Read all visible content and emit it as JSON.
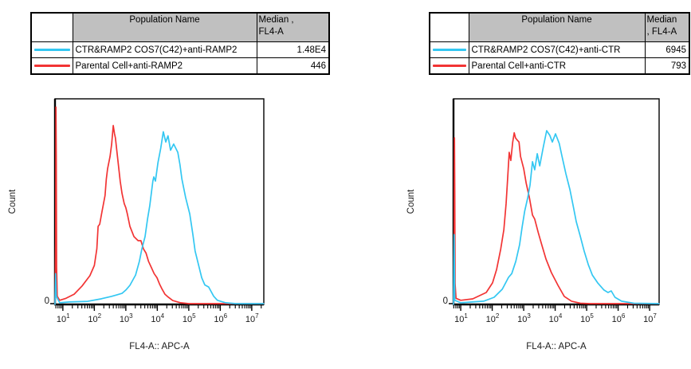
{
  "colors": {
    "series_cyan": "#33c7f2",
    "series_red": "#f23434",
    "table_header_bg": "#c0c0c0",
    "axis": "#000000"
  },
  "panels": [
    {
      "table": {
        "population_header": "Population Name",
        "median_header_line1": "Median ,",
        "median_header_line2": "FL4-A",
        "rows": [
          {
            "label": "CTR&RAMP2 COS7(C42)+anti-RAMP2",
            "value": "1.48E4"
          },
          {
            "label": "Parental Cell+anti-RAMP2",
            "value": "446"
          }
        ]
      }
    },
    {
      "table": {
        "population_header": "Population Name",
        "median_header_line1": "Median",
        "median_header_line2": ", FL4-A",
        "rows": [
          {
            "label": "CTR&RAMP2 COS7(C42)+anti-CTR",
            "value": "6945"
          },
          {
            "label": "Parental Cell+anti-CTR",
            "value": "793"
          }
        ]
      }
    }
  ],
  "chart_data": [
    {
      "type": "line",
      "subtype": "flow-cytometry-histogram",
      "title": "",
      "xlabel": "FL4-A:: APC-A",
      "ylabel": "Count",
      "x_scale": "log10",
      "x_ticks_exponents": [
        1,
        2,
        3,
        4,
        5,
        6,
        7
      ],
      "x_range_exponents": [
        0.75,
        7.38
      ],
      "y_origin_label": "0",
      "y_unit": "relative count (axis unlabeled except 0)",
      "series": [
        {
          "name": "CTR&RAMP2 COS7(C42)+anti-RAMP2",
          "color": "#33c7f2",
          "median_fl4a": "1.48E4",
          "points": [
            [
              0.75,
              0.0
            ],
            [
              0.77,
              0.15
            ],
            [
              0.79,
              0.04
            ],
            [
              0.9,
              0.008
            ],
            [
              1.2,
              0.012
            ],
            [
              1.79,
              0.015
            ],
            [
              2.21,
              0.027
            ],
            [
              2.54,
              0.039
            ],
            [
              2.72,
              0.047
            ],
            [
              2.88,
              0.054
            ],
            [
              3.0,
              0.07
            ],
            [
              3.13,
              0.093
            ],
            [
              3.31,
              0.143
            ],
            [
              3.43,
              0.21
            ],
            [
              3.51,
              0.27
            ],
            [
              3.61,
              0.33
            ],
            [
              3.69,
              0.415
            ],
            [
              3.76,
              0.48
            ],
            [
              3.86,
              0.6
            ],
            [
              3.89,
              0.62
            ],
            [
              3.94,
              0.6
            ],
            [
              4.02,
              0.69
            ],
            [
              4.11,
              0.76
            ],
            [
              4.19,
              0.84
            ],
            [
              4.27,
              0.79
            ],
            [
              4.34,
              0.82
            ],
            [
              4.42,
              0.75
            ],
            [
              4.52,
              0.78
            ],
            [
              4.65,
              0.74
            ],
            [
              4.72,
              0.68
            ],
            [
              4.78,
              0.61
            ],
            [
              4.9,
              0.52
            ],
            [
              5.03,
              0.44
            ],
            [
              5.13,
              0.34
            ],
            [
              5.2,
              0.26
            ],
            [
              5.33,
              0.18
            ],
            [
              5.41,
              0.13
            ],
            [
              5.51,
              0.095
            ],
            [
              5.63,
              0.085
            ],
            [
              5.79,
              0.04
            ],
            [
              5.91,
              0.02
            ],
            [
              6.17,
              0.008
            ],
            [
              6.5,
              0.004
            ],
            [
              7.38,
              0.004
            ]
          ]
        },
        {
          "name": "Parental Cell+anti-RAMP2",
          "color": "#f23434",
          "median_fl4a": "446",
          "points": [
            [
              0.75,
              0.0
            ],
            [
              0.77,
              0.3
            ],
            [
              0.78,
              0.96
            ],
            [
              0.79,
              0.72
            ],
            [
              0.8,
              0.18
            ],
            [
              0.82,
              0.04
            ],
            [
              0.9,
              0.02
            ],
            [
              1.1,
              0.03
            ],
            [
              1.36,
              0.05
            ],
            [
              1.61,
              0.09
            ],
            [
              1.86,
              0.14
            ],
            [
              2.0,
              0.19
            ],
            [
              2.08,
              0.27
            ],
            [
              2.12,
              0.38
            ],
            [
              2.17,
              0.39
            ],
            [
              2.24,
              0.45
            ],
            [
              2.34,
              0.53
            ],
            [
              2.38,
              0.61
            ],
            [
              2.42,
              0.66
            ],
            [
              2.5,
              0.72
            ],
            [
              2.55,
              0.78
            ],
            [
              2.6,
              0.87
            ],
            [
              2.64,
              0.83
            ],
            [
              2.67,
              0.81
            ],
            [
              2.72,
              0.74
            ],
            [
              2.77,
              0.67
            ],
            [
              2.82,
              0.6
            ],
            [
              2.88,
              0.54
            ],
            [
              2.95,
              0.49
            ],
            [
              3.0,
              0.47
            ],
            [
              3.05,
              0.44
            ],
            [
              3.13,
              0.38
            ],
            [
              3.26,
              0.33
            ],
            [
              3.39,
              0.31
            ],
            [
              3.48,
              0.31
            ],
            [
              3.56,
              0.27
            ],
            [
              3.64,
              0.25
            ],
            [
              3.72,
              0.21
            ],
            [
              3.81,
              0.18
            ],
            [
              3.9,
              0.15
            ],
            [
              3.99,
              0.13
            ],
            [
              4.07,
              0.1
            ],
            [
              4.14,
              0.078
            ],
            [
              4.24,
              0.05
            ],
            [
              4.32,
              0.039
            ],
            [
              4.49,
              0.019
            ],
            [
              4.74,
              0.008
            ],
            [
              5.0,
              0.004
            ],
            [
              7.38,
              0.004
            ]
          ]
        }
      ]
    },
    {
      "type": "line",
      "subtype": "flow-cytometry-histogram",
      "title": "",
      "xlabel": "FL4-A:: APC-A",
      "ylabel": "Count",
      "x_scale": "log10",
      "x_ticks_exponents": [
        1,
        2,
        3,
        4,
        5,
        6,
        7
      ],
      "x_range_exponents": [
        0.77,
        7.3
      ],
      "y_origin_label": "0",
      "y_unit": "relative count (axis unlabeled except 0)",
      "series": [
        {
          "name": "CTR&RAMP2 COS7(C42)+anti-CTR",
          "color": "#33c7f2",
          "median_fl4a": "6945",
          "points": [
            [
              0.77,
              0.0
            ],
            [
              0.79,
              0.34
            ],
            [
              0.81,
              0.02
            ],
            [
              1.0,
              0.008
            ],
            [
              1.73,
              0.016
            ],
            [
              2.06,
              0.035
            ],
            [
              2.32,
              0.074
            ],
            [
              2.52,
              0.132
            ],
            [
              2.62,
              0.15
            ],
            [
              2.75,
              0.21
            ],
            [
              2.87,
              0.29
            ],
            [
              2.95,
              0.376
            ],
            [
              3.03,
              0.453
            ],
            [
              3.13,
              0.52
            ],
            [
              3.2,
              0.58
            ],
            [
              3.28,
              0.694
            ],
            [
              3.35,
              0.655
            ],
            [
              3.43,
              0.733
            ],
            [
              3.51,
              0.674
            ],
            [
              3.62,
              0.764
            ],
            [
              3.73,
              0.845
            ],
            [
              3.83,
              0.822
            ],
            [
              3.91,
              0.79
            ],
            [
              4.01,
              0.83
            ],
            [
              4.13,
              0.783
            ],
            [
              4.21,
              0.725
            ],
            [
              4.34,
              0.636
            ],
            [
              4.47,
              0.558
            ],
            [
              4.57,
              0.481
            ],
            [
              4.67,
              0.403
            ],
            [
              4.8,
              0.33
            ],
            [
              4.92,
              0.26
            ],
            [
              5.05,
              0.194
            ],
            [
              5.18,
              0.143
            ],
            [
              5.35,
              0.105
            ],
            [
              5.55,
              0.07
            ],
            [
              5.68,
              0.058
            ],
            [
              5.78,
              0.066
            ],
            [
              5.9,
              0.035
            ],
            [
              6.11,
              0.016
            ],
            [
              6.5,
              0.006
            ],
            [
              7.3,
              0.004
            ]
          ]
        },
        {
          "name": "Parental Cell+anti-CTR",
          "color": "#f23434",
          "median_fl4a": "793",
          "points": [
            [
              0.77,
              0.0
            ],
            [
              0.79,
              0.25
            ],
            [
              0.8,
              0.81
            ],
            [
              0.81,
              0.55
            ],
            [
              0.82,
              0.1
            ],
            [
              0.85,
              0.03
            ],
            [
              1.0,
              0.02
            ],
            [
              1.38,
              0.027
            ],
            [
              1.81,
              0.058
            ],
            [
              2.01,
              0.105
            ],
            [
              2.14,
              0.17
            ],
            [
              2.27,
              0.27
            ],
            [
              2.37,
              0.364
            ],
            [
              2.44,
              0.49
            ],
            [
              2.49,
              0.61
            ],
            [
              2.54,
              0.74
            ],
            [
              2.59,
              0.7
            ],
            [
              2.65,
              0.79
            ],
            [
              2.7,
              0.835
            ],
            [
              2.74,
              0.81
            ],
            [
              2.79,
              0.8
            ],
            [
              2.85,
              0.79
            ],
            [
              2.9,
              0.72
            ],
            [
              3.0,
              0.66
            ],
            [
              3.08,
              0.59
            ],
            [
              3.18,
              0.52
            ],
            [
              3.28,
              0.435
            ],
            [
              3.35,
              0.415
            ],
            [
              3.46,
              0.35
            ],
            [
              3.58,
              0.287
            ],
            [
              3.71,
              0.22
            ],
            [
              3.88,
              0.155
            ],
            [
              4.09,
              0.093
            ],
            [
              4.29,
              0.039
            ],
            [
              4.52,
              0.016
            ],
            [
              4.8,
              0.006
            ],
            [
              5.1,
              0.004
            ],
            [
              7.3,
              0.004
            ]
          ]
        }
      ]
    }
  ]
}
